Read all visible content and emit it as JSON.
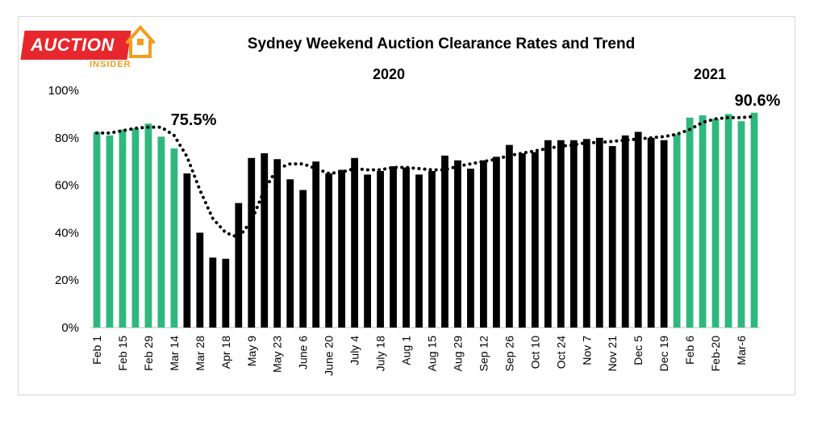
{
  "logo": {
    "word": "AUCTION",
    "sub": "INSIDER",
    "color_primary": "#e8262d",
    "color_accent": "#f39c1c"
  },
  "chart_data": {
    "type": "bar",
    "title": "Sydney Weekend Auction Clearance Rates and Trend",
    "year_labels": [
      "2020",
      "2021"
    ],
    "ylim": [
      0,
      100
    ],
    "yticks": [
      "0%",
      "20%",
      "40%",
      "60%",
      "80%",
      "100%"
    ],
    "colors": {
      "highlight": "#2fb87e",
      "default": "#000000",
      "trend": "#000000"
    },
    "annotations": [
      "75.5%",
      "90.6%"
    ],
    "tick_labels": [
      "Feb 1",
      "Feb 15",
      "Feb 29",
      "Mar 14",
      "Mar 28",
      "Apr 18",
      "May 9",
      "May 23",
      "June 6",
      "June 20",
      "July 4",
      "July 18",
      "Aug 1",
      "Aug 15",
      "Aug 29",
      "Sep 12",
      "Sep 26",
      "Oct 10",
      "Oct 24",
      "Nov 7",
      "Nov 21",
      "Dec 5",
      "Dec 19",
      "Feb 6",
      "Feb-20",
      "Mar-6"
    ],
    "series": [
      {
        "values": [
          82.5,
          81,
          83.5,
          84,
          86,
          80.5,
          75.5,
          65,
          40,
          29.5,
          29,
          52.5,
          71.5,
          73.5,
          71,
          62.5,
          58,
          70,
          65,
          66.5,
          71.5,
          64.5,
          66,
          68,
          67.5,
          64.5,
          66,
          72.5,
          70.5,
          67,
          70.5,
          72,
          77,
          73.5,
          74,
          79,
          79,
          79,
          79.5,
          80,
          76.5,
          81,
          82.5,
          80,
          79,
          81.5,
          88.5,
          89.5,
          88,
          90,
          87,
          90.6
        ],
        "highlight": [
          true,
          true,
          true,
          true,
          true,
          true,
          true,
          false,
          false,
          false,
          false,
          false,
          false,
          false,
          false,
          false,
          false,
          false,
          false,
          false,
          false,
          false,
          false,
          false,
          false,
          false,
          false,
          false,
          false,
          false,
          false,
          false,
          false,
          false,
          false,
          false,
          false,
          false,
          false,
          false,
          false,
          false,
          false,
          false,
          false,
          true,
          true,
          true,
          true,
          true,
          true,
          true
        ]
      },
      {
        "values": [
          82,
          82,
          83,
          84,
          84.5,
          84.5,
          81,
          72,
          58,
          46,
          40,
          38,
          45,
          58,
          67,
          69,
          69,
          67,
          65,
          65.5,
          67,
          66.5,
          66.5,
          67.5,
          67.5,
          67,
          66.5,
          66.5,
          68,
          69,
          70,
          71,
          72.5,
          73.5,
          74.5,
          75.5,
          76.5,
          77,
          78,
          78,
          78.5,
          79,
          79.5,
          80,
          80.5,
          81.5,
          83.5,
          86.5,
          88,
          88.5,
          88.5,
          89
        ]
      }
    ]
  }
}
